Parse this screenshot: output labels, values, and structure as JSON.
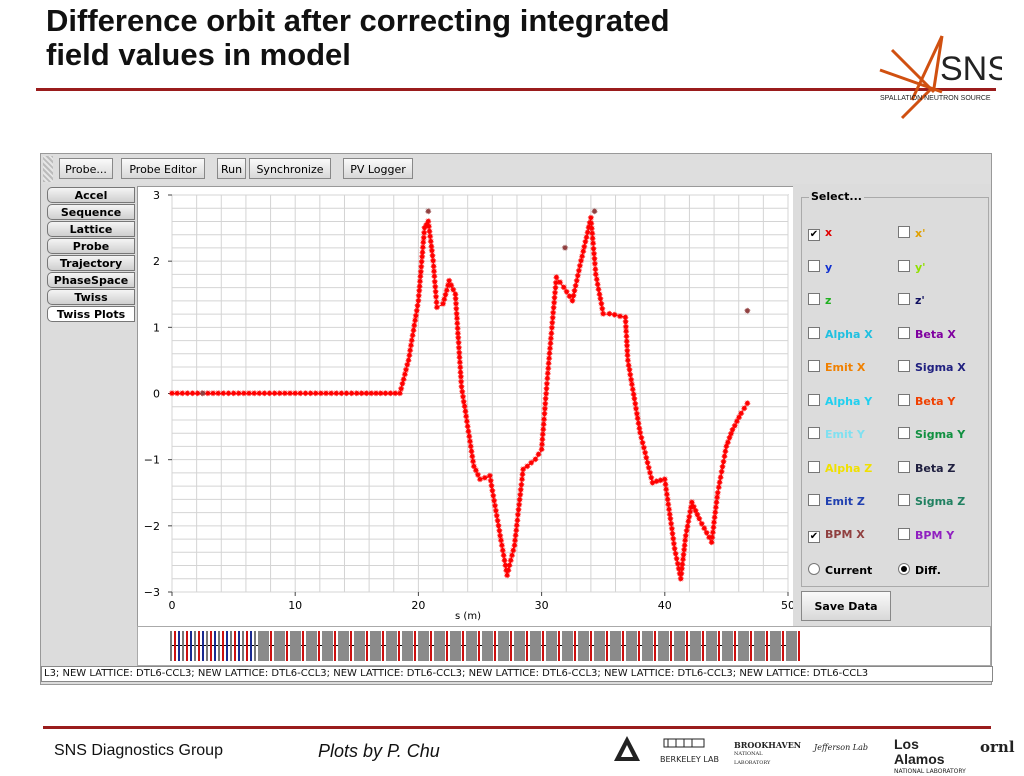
{
  "slide": {
    "title_line1": "Difference orbit after correcting integrated",
    "title_line2": "field values in model",
    "logo_text": "SNS",
    "logo_subtext": "SPALLATION NEUTRON SOURCE",
    "footer_group": "SNS Diagnostics Group",
    "footer_credit": "Plots by P. Chu",
    "partner_logos": [
      "BERKELEY LAB",
      "BROOKHAVEN",
      "NATIONAL LABORATORY",
      "Jefferson Lab",
      "Los Alamos",
      "NATIONAL LABORATORY",
      "ornl"
    ]
  },
  "toolbar": {
    "buttons": [
      "Probe...",
      "Probe Editor",
      "Run",
      "Synchronize",
      "PV Logger"
    ]
  },
  "tabs": {
    "items": [
      "Accel",
      "Sequence",
      "Lattice",
      "Probe",
      "Trajectory",
      "PhaseSpace",
      "Twiss",
      "Twiss Plots"
    ],
    "selected": "Twiss Plots"
  },
  "select_panel": {
    "title": "Select...",
    "options": [
      {
        "label": "x",
        "checked": true,
        "color": "#e00000"
      },
      {
        "label": "x'",
        "checked": false,
        "color": "#e0a000"
      },
      {
        "label": "y",
        "checked": false,
        "color": "#1030d0"
      },
      {
        "label": "y'",
        "checked": false,
        "color": "#90e000"
      },
      {
        "label": "z",
        "checked": false,
        "color": "#20b020"
      },
      {
        "label": "z'",
        "checked": false,
        "color": "#101060"
      },
      {
        "label": "Alpha X",
        "checked": false,
        "color": "#20c0e0"
      },
      {
        "label": "Beta X",
        "checked": false,
        "color": "#8000a0"
      },
      {
        "label": "Emit X",
        "checked": false,
        "color": "#f08000"
      },
      {
        "label": "Sigma X",
        "checked": false,
        "color": "#202080"
      },
      {
        "label": "Alpha Y",
        "checked": false,
        "color": "#20d0f0"
      },
      {
        "label": "Beta Y",
        "checked": false,
        "color": "#f04000"
      },
      {
        "label": "Emit Y",
        "checked": false,
        "color": "#80e0f0"
      },
      {
        "label": "Sigma Y",
        "checked": false,
        "color": "#109040"
      },
      {
        "label": "Alpha Z",
        "checked": false,
        "color": "#f0e000"
      },
      {
        "label": "Beta Z",
        "checked": false,
        "color": "#202040"
      },
      {
        "label": "Emit Z",
        "checked": false,
        "color": "#2040b0"
      },
      {
        "label": "Sigma Z",
        "checked": false,
        "color": "#208060"
      },
      {
        "label": "BPM X",
        "checked": true,
        "color": "#904040"
      },
      {
        "label": "BPM Y",
        "checked": false,
        "color": "#9020c0"
      }
    ],
    "mode_current": "Current",
    "mode_diff": "Diff.",
    "selected_mode": "Diff.",
    "save_button": "Save Data"
  },
  "status_bar": {
    "text": "L3; NEW LATTICE: DTL6-CCL3; NEW LATTICE: DTL6-CCL3; NEW LATTICE: DTL6-CCL3; NEW LATTICE: DTL6-CCL3; NEW LATTICE: DTL6-CCL3; NEW LATTICE: DTL6-CCL3"
  },
  "chart_data": {
    "type": "scatter",
    "title": "",
    "xlabel": "s (m)",
    "ylabel": "",
    "xlim": [
      0,
      50
    ],
    "ylim": [
      -3,
      3
    ],
    "x_ticks": [
      0,
      10,
      20,
      30,
      40,
      50
    ],
    "y_ticks": [
      3,
      2,
      1,
      0,
      -1,
      -2,
      -3
    ],
    "grid": true,
    "series": [
      {
        "name": "x",
        "color": "#ff0000",
        "marker": "star",
        "x": [
          0,
          5,
          10,
          15,
          18.5,
          19.2,
          20,
          20.5,
          20.8,
          21.2,
          21.5,
          22,
          22.5,
          23,
          23.5,
          24.5,
          25,
          25.8,
          26.5,
          27.2,
          27.8,
          28.5,
          29.5,
          30,
          30.5,
          31.2,
          31.8,
          32.5,
          33.2,
          34,
          34.4,
          35,
          35.5,
          36.8,
          37,
          38,
          39,
          40,
          40.8,
          41.3,
          41.7,
          42.2,
          42.8,
          43.8,
          44.3,
          45,
          45.5,
          46.2,
          46.7
        ],
        "y": [
          0,
          0,
          0,
          0,
          0,
          0.5,
          1.4,
          2.5,
          2.6,
          2.0,
          1.3,
          1.35,
          1.7,
          1.5,
          0.1,
          -1.1,
          -1.3,
          -1.25,
          -2.0,
          -2.75,
          -2.3,
          -1.15,
          -1.0,
          -0.85,
          0.3,
          1.75,
          1.6,
          1.4,
          2.0,
          2.65,
          1.8,
          1.2,
          1.2,
          1.15,
          0.5,
          -0.6,
          -1.35,
          -1.3,
          -2.35,
          -2.8,
          -2.15,
          -1.65,
          -1.9,
          -2.25,
          -1.5,
          -0.8,
          -0.55,
          -0.3,
          -0.15
        ]
      },
      {
        "name": "BPM X",
        "color": "#904040",
        "marker": "star",
        "x": [
          2.5,
          20.8,
          31.9,
          34.3,
          46.7
        ],
        "y": [
          0.0,
          2.75,
          2.2,
          2.75,
          1.25
        ]
      }
    ]
  }
}
